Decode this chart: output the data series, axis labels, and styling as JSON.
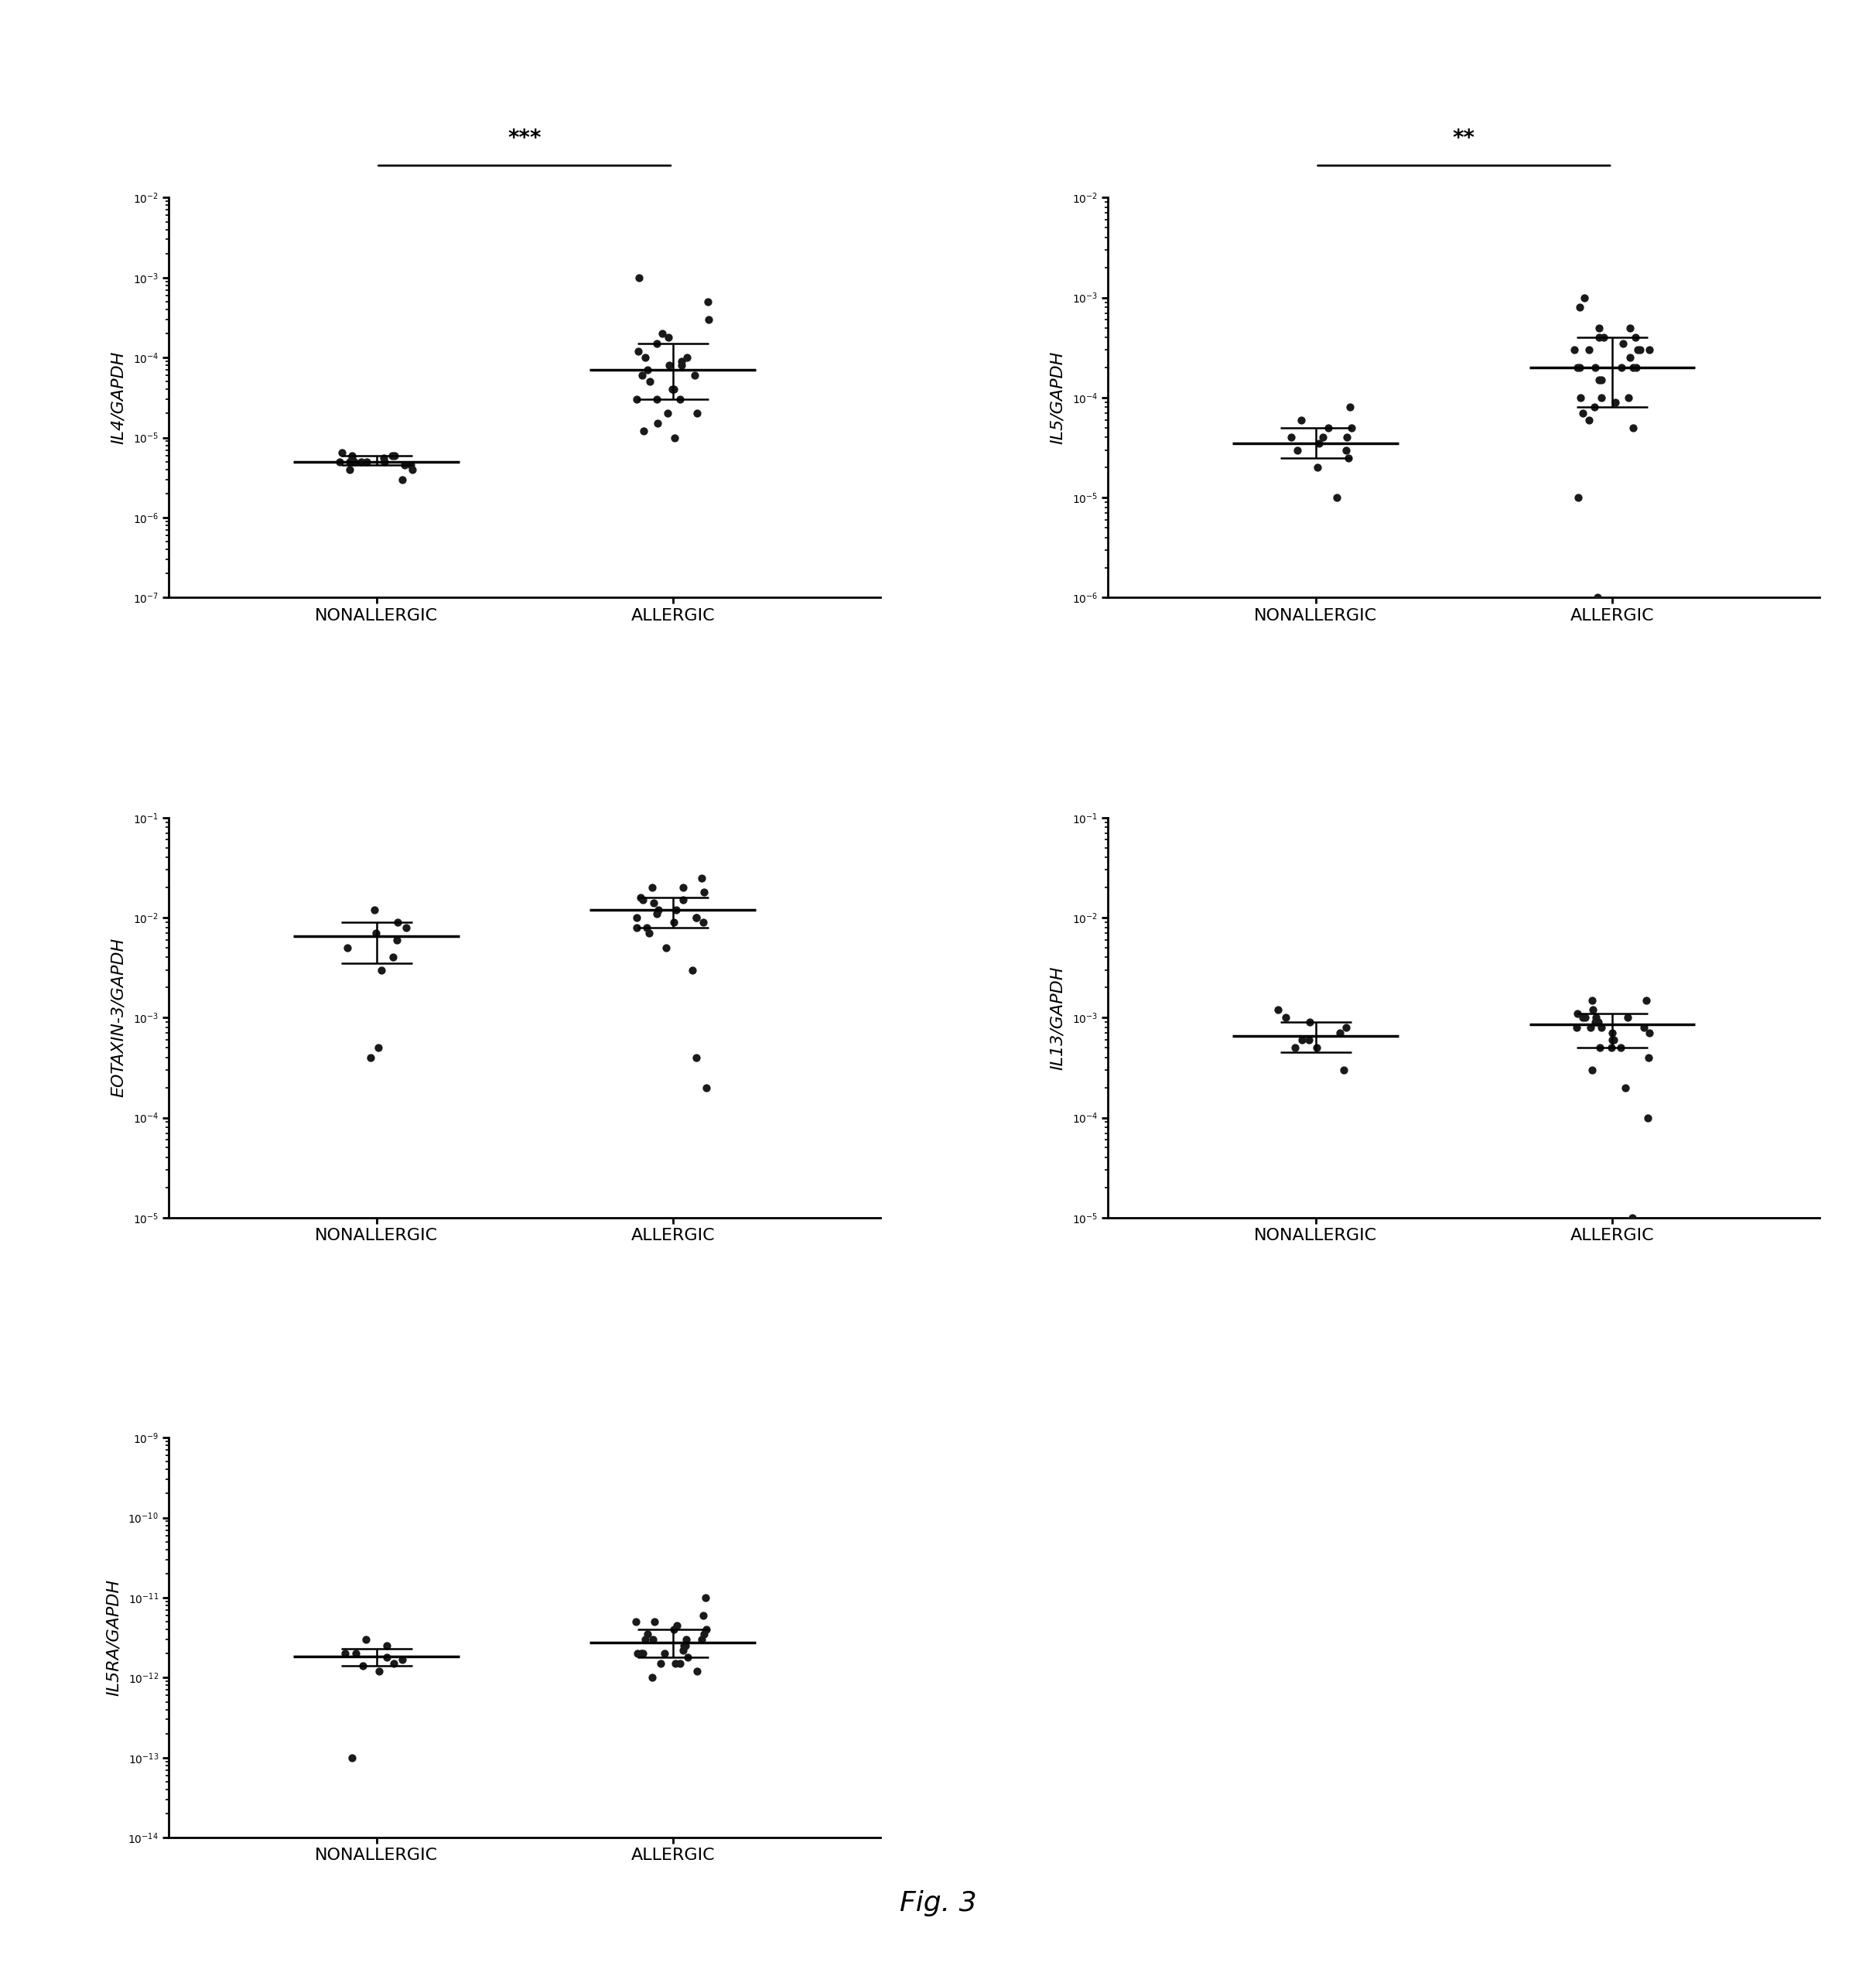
{
  "panels": [
    {
      "ylabel": "IL4/GAPDH",
      "ylim": [
        1e-07,
        0.01
      ],
      "yticks": [
        1e-07,
        1e-06,
        1e-05,
        0.0001,
        0.001,
        0.01
      ],
      "significance": "***",
      "nonallergic": [
        5e-06,
        4.5e-06,
        6e-06,
        5.5e-06,
        4e-06,
        5e-06,
        6.5e-06,
        4.5e-06,
        5e-06,
        6e-06,
        5e-06,
        4e-06,
        3e-06,
        5e-06,
        6e-06,
        5.5e-06,
        5e-06
      ],
      "nonallergic_median": 5e-06,
      "nonallergic_iqr": [
        4.5e-06,
        6e-06
      ],
      "allergic": [
        1e-05,
        2e-05,
        3e-05,
        8e-05,
        0.0001,
        0.00015,
        0.0002,
        8e-05,
        6e-05,
        5e-05,
        4e-05,
        3e-05,
        0.00012,
        9e-05,
        7e-05,
        0.001,
        0.0005,
        0.0003,
        2e-05,
        1.5e-05,
        6e-05,
        0.0001,
        0.00018,
        1.2e-05,
        4e-05,
        3e-05
      ],
      "allergic_median": 7e-05,
      "allergic_iqr": [
        3e-05,
        0.00015
      ]
    },
    {
      "ylabel": "IL5/GAPDH",
      "ylim": [
        1e-06,
        0.01
      ],
      "yticks": [
        1e-06,
        1e-05,
        0.0001,
        0.001,
        0.01
      ],
      "significance": "**",
      "nonallergic": [
        4e-05,
        3e-05,
        5e-05,
        6e-05,
        2e-05,
        3.5e-05,
        4e-05,
        5e-05,
        1e-05,
        8e-05,
        3e-05,
        4e-05,
        2.5e-05
      ],
      "nonallergic_median": 3.5e-05,
      "nonallergic_iqr": [
        2.5e-05,
        5e-05
      ],
      "allergic": [
        0.0001,
        0.0003,
        0.0002,
        0.0005,
        0.0004,
        8e-05,
        0.0003,
        0.00015,
        0.0002,
        9e-05,
        0.001,
        0.0004,
        0.0002,
        0.0003,
        5e-05,
        6e-05,
        0.0003,
        0.0002,
        0.0001,
        0.0005,
        0.0002,
        0.0008,
        0.0001,
        7e-05,
        0.0003,
        0.0002,
        0.0004,
        1e-05,
        1e-06,
        0.00015,
        0.00025,
        0.00035
      ],
      "allergic_median": 0.0002,
      "allergic_iqr": [
        8e-05,
        0.0004
      ]
    },
    {
      "ylabel": "EOTAXIN-3/GAPDH",
      "ylim": [
        1e-05,
        0.1
      ],
      "yticks": [
        1e-05,
        0.0001,
        0.001,
        0.01,
        0.1
      ],
      "significance": null,
      "nonallergic": [
        0.008,
        0.012,
        0.005,
        0.004,
        0.006,
        0.003,
        0.009,
        0.007,
        0.0005,
        0.0004
      ],
      "nonallergic_median": 0.0065,
      "nonallergic_iqr": [
        0.0035,
        0.009
      ],
      "allergic": [
        0.01,
        0.015,
        0.008,
        0.02,
        0.012,
        0.009,
        0.018,
        0.014,
        0.005,
        0.003,
        0.02,
        0.016,
        0.011,
        0.008,
        0.0002,
        0.01,
        0.015,
        0.025,
        0.01,
        0.007,
        0.009,
        0.012,
        0.0004
      ],
      "allergic_median": 0.012,
      "allergic_iqr": [
        0.008,
        0.016
      ]
    },
    {
      "ylabel": "IL13/GAPDH",
      "ylim": [
        1e-05,
        0.1
      ],
      "yticks": [
        1e-05,
        0.0001,
        0.001,
        0.01,
        0.1
      ],
      "significance": null,
      "nonallergic": [
        0.0008,
        0.0006,
        0.001,
        0.0005,
        0.0009,
        0.0007,
        0.0003,
        0.0012,
        0.0005,
        0.0006
      ],
      "nonallergic_median": 0.00065,
      "nonallergic_iqr": [
        0.00045,
        0.0009
      ],
      "allergic": [
        0.0008,
        0.001,
        0.0005,
        0.0015,
        0.0009,
        0.0006,
        0.001,
        0.0008,
        0.0004,
        0.0001,
        0.0012,
        0.0007,
        0.0009,
        0.001,
        0.0008,
        0.0005,
        0.0006,
        0.0011,
        0.0009,
        0.0008,
        0.0015,
        0.001,
        0.0005,
        0.0007,
        0.0003,
        0.0002,
        1e-05
      ],
      "allergic_median": 0.00085,
      "allergic_iqr": [
        0.0005,
        0.0011
      ]
    },
    {
      "ylabel": "IL5RA/GAPDH",
      "ylim": [
        1e-14,
        1e-09
      ],
      "yticks": [
        1e-14,
        1e-13,
        1e-12,
        1e-11,
        1e-10,
        1e-09
      ],
      "significance": null,
      "nonallergic": [
        2e-12,
        1.5e-12,
        3e-12,
        1.8e-12,
        2.5e-12,
        1.2e-12,
        2e-12,
        1.7e-12,
        1.4e-12,
        1e-13
      ],
      "nonallergic_median": 1.85e-12,
      "nonallergic_iqr": [
        1.4e-12,
        2.3e-12
      ],
      "allergic": [
        2e-12,
        1.5e-12,
        3e-12,
        5e-12,
        4e-12,
        1e-12,
        2.5e-12,
        3.5e-12,
        1.8e-12,
        2e-12,
        4e-12,
        3e-12,
        1.5e-12,
        2e-12,
        1e-11,
        3e-12,
        5e-12,
        2.5e-12,
        1.2e-12,
        4.5e-12,
        1.5e-12,
        3e-12,
        2e-12,
        6e-12,
        3.5e-12,
        2.2e-12
      ],
      "allergic_median": 2.75e-12,
      "allergic_iqr": [
        1.8e-12,
        4e-12
      ]
    }
  ],
  "x_labels": [
    "NONALLERGIC",
    "ALLERGIC"
  ],
  "dot_color": "#1a1a1a",
  "dot_size": 55,
  "line_color": "#000000",
  "sig_line_color": "#000000",
  "fig_caption": "Fig. 3",
  "background_color": "#ffffff",
  "jitter_spread": 0.13
}
